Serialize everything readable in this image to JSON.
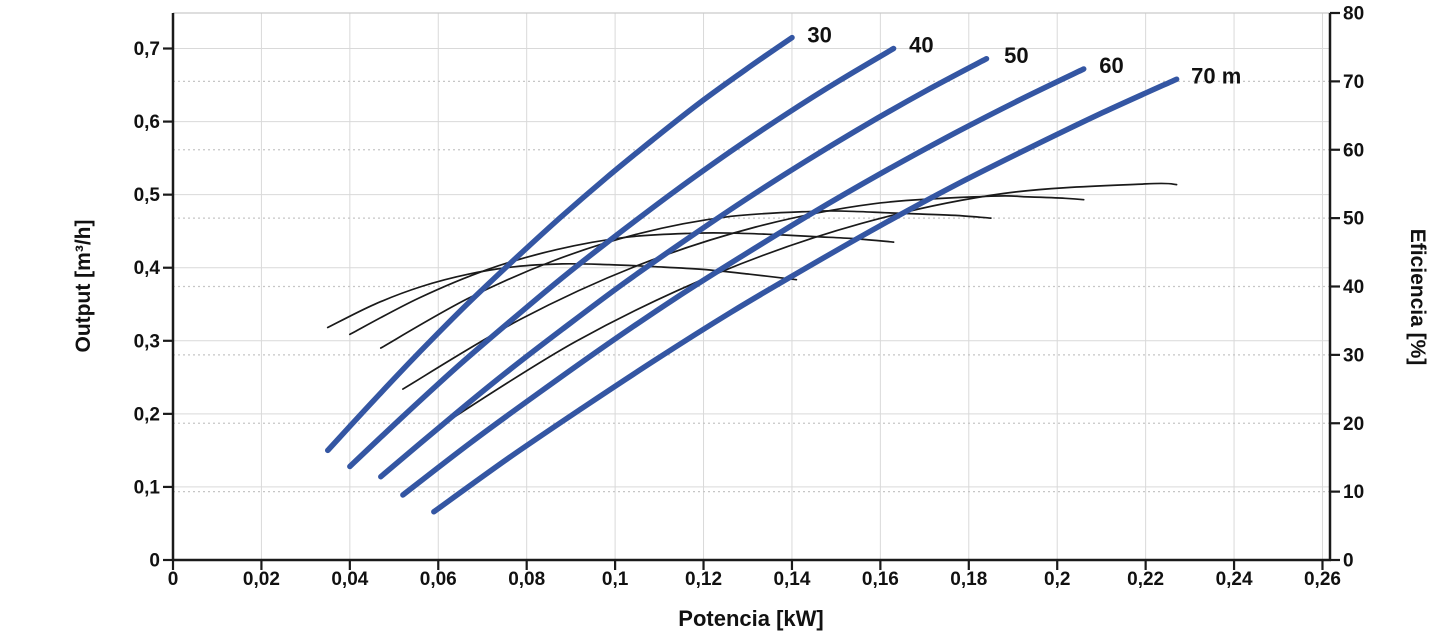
{
  "chart_data": {
    "type": "line",
    "title": "",
    "xlabel": "Potencia [kW]",
    "ylabel_left": "Output [m³/h]",
    "ylabel_right": "Eficiencia [%]",
    "x_axis": {
      "min": 0,
      "max": 0.2617,
      "tick_values": [
        0,
        0.02,
        0.04,
        0.06,
        0.08,
        0.1,
        0.12,
        0.14,
        0.16,
        0.18,
        0.2,
        0.22,
        0.24,
        0.26
      ],
      "tick_labels": [
        "0",
        "0,02",
        "0,04",
        "0,06",
        "0,08",
        "0,1",
        "0,12",
        "0,14",
        "0,16",
        "0,18",
        "0,2",
        "0,22",
        "0,24",
        "0,26"
      ]
    },
    "y_left_axis": {
      "min": 0,
      "max": 0.7486,
      "tick_values": [
        0,
        0.1,
        0.2,
        0.3,
        0.4,
        0.5,
        0.6,
        0.7
      ],
      "tick_labels": [
        "0",
        "0,1",
        "0,2",
        "0,3",
        "0,4",
        "0,5",
        "0,6",
        "0,7"
      ]
    },
    "y_right_axis": {
      "min": 0,
      "max": 80,
      "tick_values": [
        0,
        10,
        20,
        30,
        40,
        50,
        60,
        70,
        80
      ],
      "tick_labels": [
        "0",
        "10",
        "20",
        "30",
        "40",
        "50",
        "60",
        "70",
        "80"
      ]
    },
    "grid": {
      "vertical_solid_at_x_ticks": true,
      "horizontal_solid_at_left_ticks": true,
      "horizontal_dotted_at_right_ticks": true
    },
    "colors": {
      "head_curve": "#3456a3",
      "efficiency_curve": "#1a1a1a",
      "grid_solid": "#d9d9d9",
      "grid_dotted": "#c6c6c6",
      "axis": "#1a1a1a",
      "frame_top": "#c9c9c9",
      "background": "#ffffff"
    },
    "series": [
      {
        "id": "head-30",
        "name": "Head 30 m output vs power",
        "label": "30",
        "label_at": [
          0.1435,
          0.718
        ],
        "axis": "left",
        "style": "thick",
        "points": [
          [
            0.035,
            0.15
          ],
          [
            0.0455,
            0.219
          ],
          [
            0.056,
            0.286
          ],
          [
            0.0665,
            0.35
          ],
          [
            0.077,
            0.41
          ],
          [
            0.0875,
            0.468
          ],
          [
            0.098,
            0.523
          ],
          [
            0.1085,
            0.575
          ],
          [
            0.119,
            0.625
          ],
          [
            0.1295,
            0.671
          ],
          [
            0.14,
            0.715
          ]
        ]
      },
      {
        "id": "head-40",
        "name": "Head 40 m output vs power",
        "label": "40",
        "label_at": [
          0.1665,
          0.704
        ],
        "axis": "left",
        "style": "thick",
        "points": [
          [
            0.04,
            0.128
          ],
          [
            0.0523,
            0.198
          ],
          [
            0.0646,
            0.266
          ],
          [
            0.0769,
            0.33
          ],
          [
            0.0892,
            0.392
          ],
          [
            0.1015,
            0.45
          ],
          [
            0.1138,
            0.506
          ],
          [
            0.1261,
            0.559
          ],
          [
            0.1384,
            0.609
          ],
          [
            0.1507,
            0.656
          ],
          [
            0.163,
            0.7
          ]
        ]
      },
      {
        "id": "head-50",
        "name": "Head 50 m output vs power",
        "label": "50",
        "label_at": [
          0.188,
          0.69
        ],
        "axis": "left",
        "style": "thick",
        "points": [
          [
            0.047,
            0.114
          ],
          [
            0.0607,
            0.184
          ],
          [
            0.0744,
            0.252
          ],
          [
            0.0881,
            0.316
          ],
          [
            0.1018,
            0.378
          ],
          [
            0.1155,
            0.436
          ],
          [
            0.1292,
            0.492
          ],
          [
            0.1429,
            0.545
          ],
          [
            0.1566,
            0.595
          ],
          [
            0.1703,
            0.642
          ],
          [
            0.184,
            0.686
          ]
        ]
      },
      {
        "id": "head-60",
        "name": "Head 60 m output vs power",
        "label": "60",
        "label_at": [
          0.2095,
          0.676
        ],
        "axis": "left",
        "style": "thick",
        "points": [
          [
            0.052,
            0.089
          ],
          [
            0.0674,
            0.161
          ],
          [
            0.0828,
            0.229
          ],
          [
            0.0982,
            0.295
          ],
          [
            0.1136,
            0.358
          ],
          [
            0.129,
            0.417
          ],
          [
            0.1444,
            0.474
          ],
          [
            0.1598,
            0.528
          ],
          [
            0.1752,
            0.579
          ],
          [
            0.1906,
            0.627
          ],
          [
            0.206,
            0.672
          ]
        ]
      },
      {
        "id": "head-70",
        "name": "Head 70 m output vs power",
        "label": "70 m",
        "label_at": [
          0.2303,
          0.662
        ],
        "axis": "left",
        "style": "thick",
        "points": [
          [
            0.059,
            0.066
          ],
          [
            0.0758,
            0.139
          ],
          [
            0.0926,
            0.208
          ],
          [
            0.1094,
            0.275
          ],
          [
            0.1262,
            0.339
          ],
          [
            0.143,
            0.399
          ],
          [
            0.1598,
            0.457
          ],
          [
            0.1766,
            0.512
          ],
          [
            0.1934,
            0.563
          ],
          [
            0.2102,
            0.612
          ],
          [
            0.227,
            0.658
          ]
        ]
      },
      {
        "id": "eff-30",
        "name": "Head 30 m efficiency vs power",
        "axis": "right",
        "style": "thin",
        "points": [
          [
            0.035,
            34.0
          ],
          [
            0.0456,
            37.4
          ],
          [
            0.0562,
            40.0
          ],
          [
            0.0668,
            41.8
          ],
          [
            0.0774,
            42.9
          ],
          [
            0.088,
            43.3
          ],
          [
            0.0986,
            43.2
          ],
          [
            0.1092,
            42.9
          ],
          [
            0.1198,
            42.5
          ],
          [
            0.1304,
            41.8
          ],
          [
            0.141,
            41.0
          ]
        ]
      },
      {
        "id": "eff-40",
        "name": "Head 40 m efficiency vs power",
        "axis": "right",
        "style": "thin",
        "points": [
          [
            0.04,
            33.0
          ],
          [
            0.0556,
            38.3
          ],
          [
            0.0712,
            42.5
          ],
          [
            0.0868,
            45.4
          ],
          [
            0.1024,
            47.2
          ],
          [
            0.118,
            47.8
          ],
          [
            0.127,
            47.8
          ],
          [
            0.136,
            47.6
          ],
          [
            0.145,
            47.3
          ],
          [
            0.154,
            47.0
          ],
          [
            0.163,
            46.5
          ]
        ]
      },
      {
        "id": "eff-50",
        "name": "Head 50 m efficiency vs power",
        "axis": "right",
        "style": "thin",
        "points": [
          [
            0.047,
            31.0
          ],
          [
            0.0666,
            38.2
          ],
          [
            0.0862,
            43.8
          ],
          [
            0.1058,
            47.8
          ],
          [
            0.1254,
            50.2
          ],
          [
            0.145,
            51.0
          ],
          [
            0.153,
            51.0
          ],
          [
            0.161,
            50.8
          ],
          [
            0.169,
            50.6
          ],
          [
            0.177,
            50.4
          ],
          [
            0.185,
            50.0
          ]
        ]
      },
      {
        "id": "eff-60",
        "name": "Head 60 m efficiency vs power",
        "axis": "right",
        "style": "thin",
        "points": [
          [
            0.052,
            25.0
          ],
          [
            0.0786,
            35.2
          ],
          [
            0.1052,
            43.1
          ],
          [
            0.1318,
            48.7
          ],
          [
            0.1584,
            52.1
          ],
          [
            0.185,
            53.2
          ],
          [
            0.1934,
            53.1
          ],
          [
            0.2018,
            52.9
          ],
          [
            0.206,
            52.7
          ]
        ]
      },
      {
        "id": "eff-70",
        "name": "Head 70 m efficiency vs power",
        "axis": "right",
        "style": "thin",
        "points": [
          [
            0.059,
            19.0
          ],
          [
            0.0912,
            32.0
          ],
          [
            0.1234,
            42.0
          ],
          [
            0.1556,
            49.2
          ],
          [
            0.1878,
            53.6
          ],
          [
            0.22,
            55.0
          ],
          [
            0.227,
            54.9
          ]
        ]
      }
    ]
  }
}
